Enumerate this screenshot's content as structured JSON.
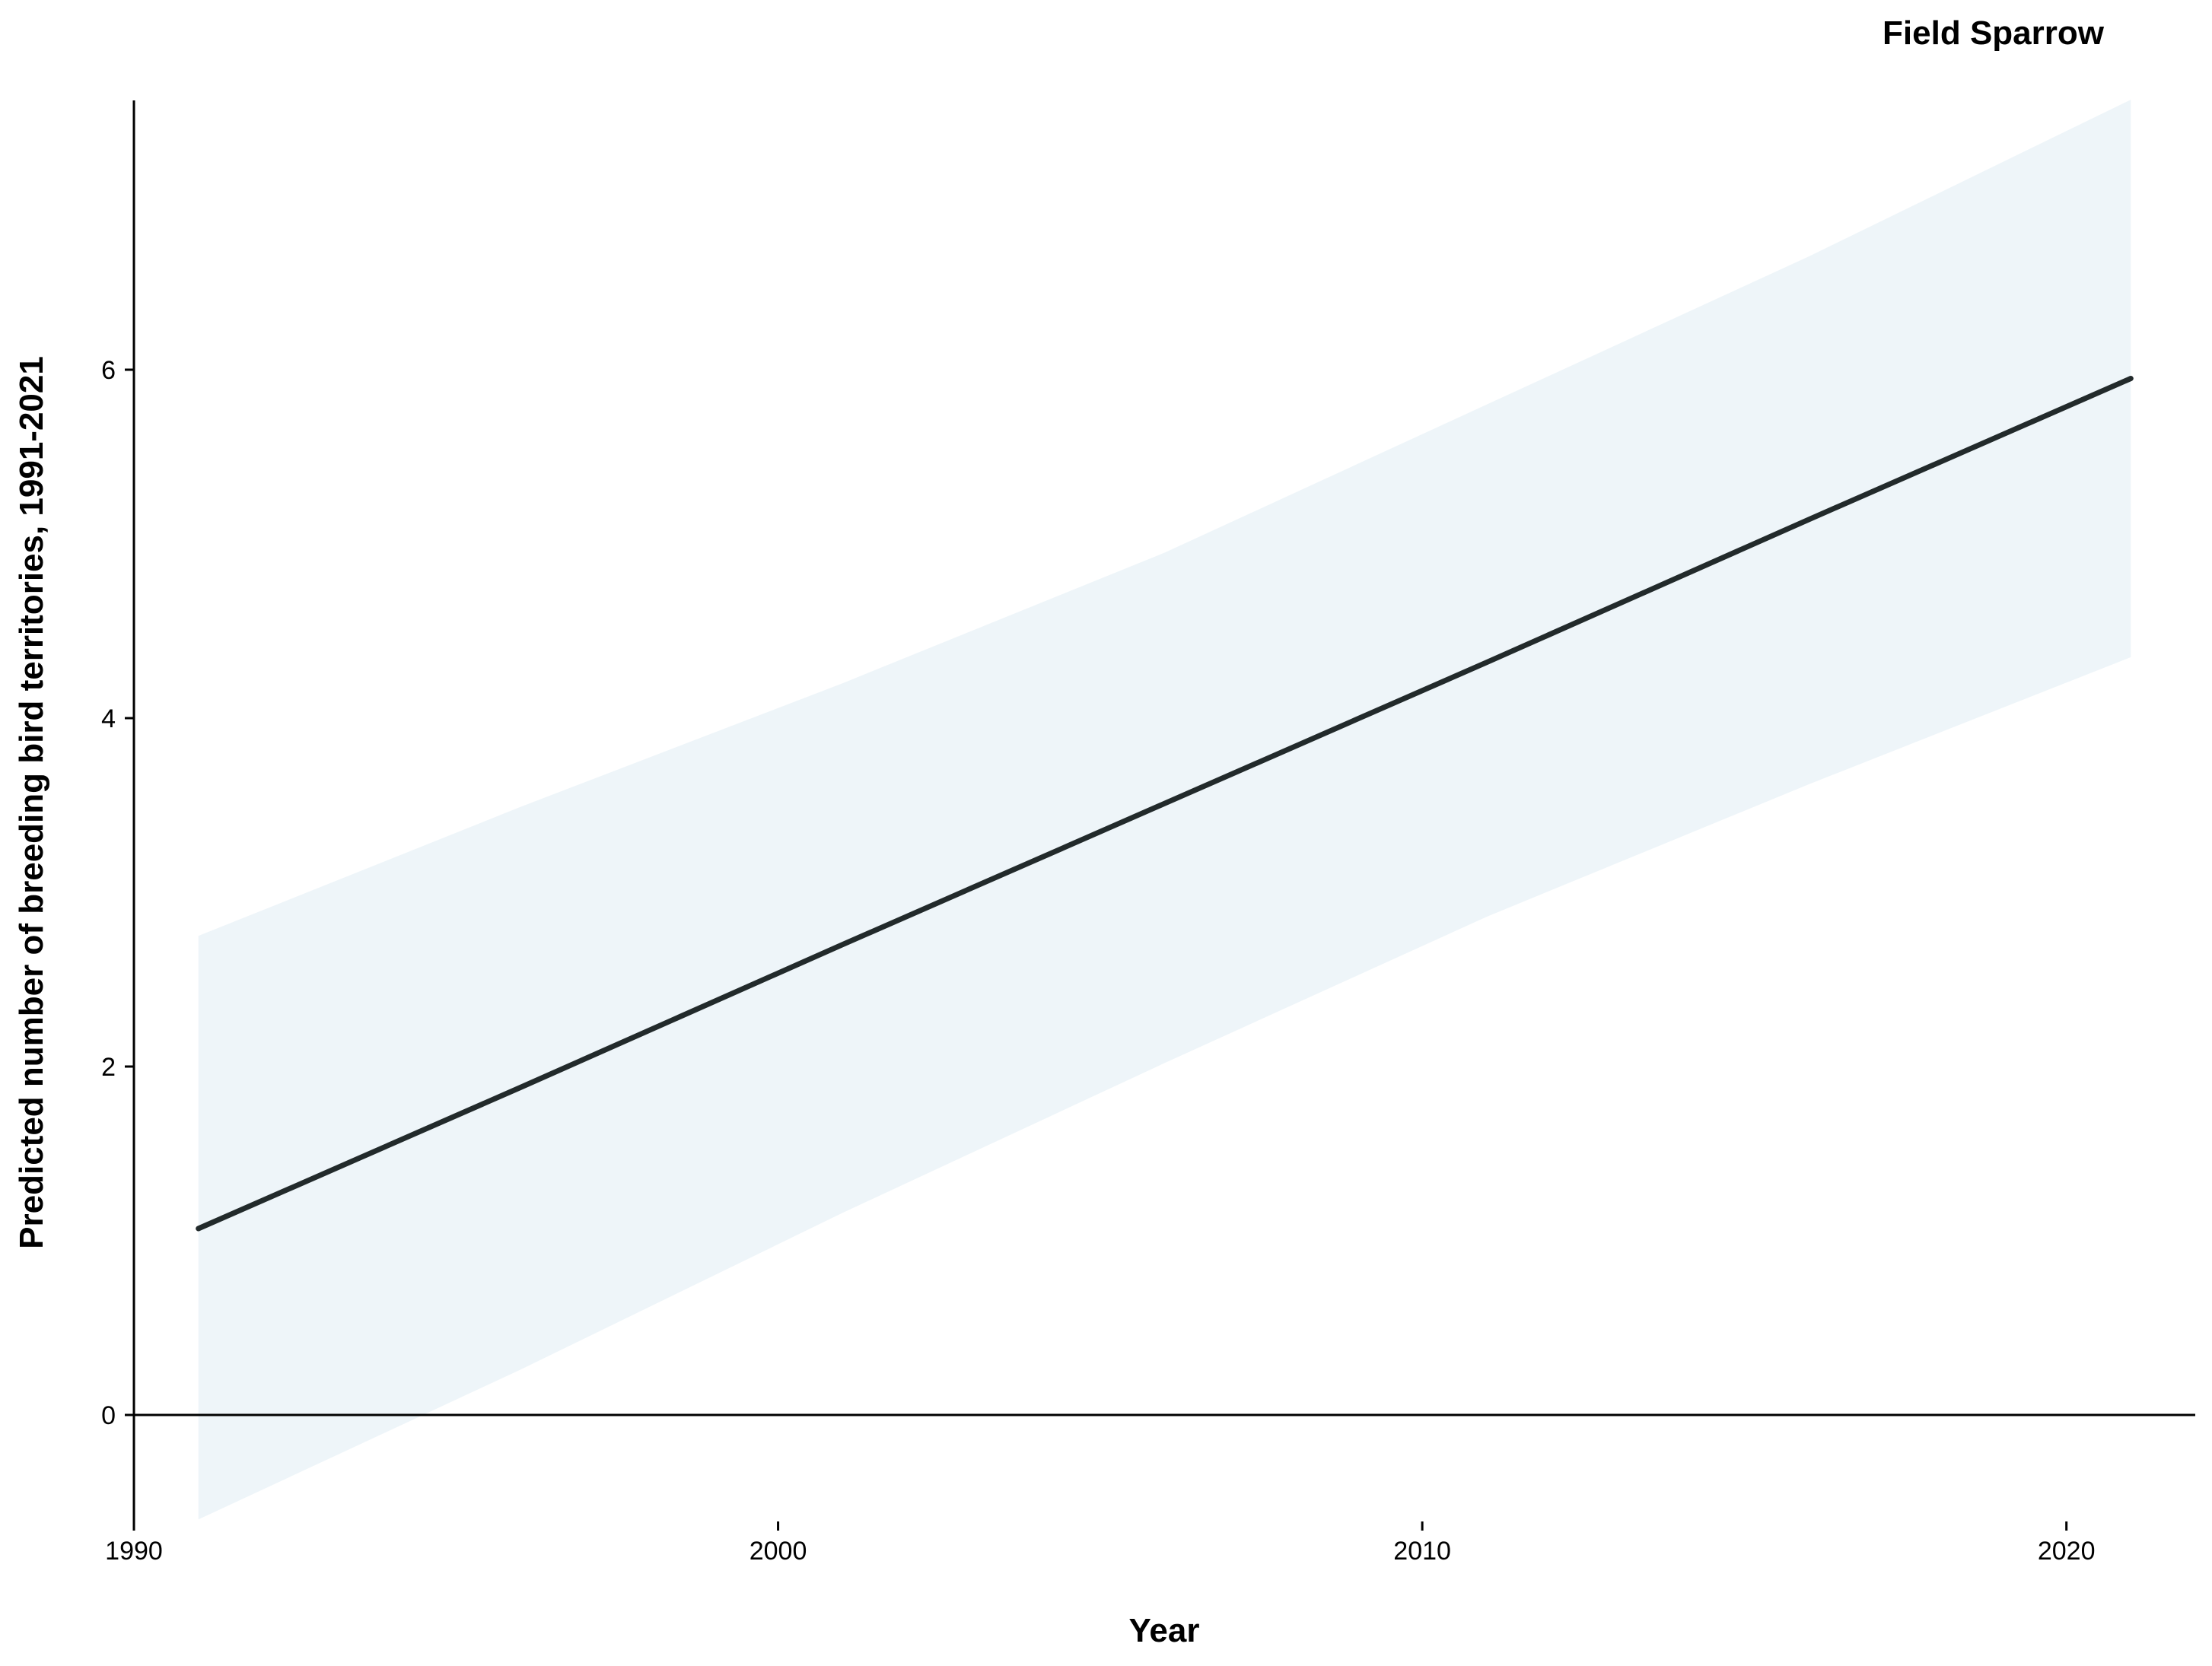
{
  "chart_data": {
    "type": "line",
    "title": "Field Sparrow",
    "xlabel": "Year",
    "ylabel": "Predicted number of breeding bird territories, 1991-2021",
    "xlim": [
      1990,
      2022
    ],
    "ylim": [
      -0.6,
      7.5
    ],
    "x_ticks": [
      1990,
      2000,
      2010,
      2020
    ],
    "y_ticks": [
      0,
      2,
      4,
      6
    ],
    "x_tick_labels": [
      "1990",
      "2000",
      "2010",
      "2020"
    ],
    "y_tick_labels": [
      "0",
      "2",
      "4",
      "6"
    ],
    "reference_line_y": 0,
    "grid": false,
    "legend": "none",
    "colors": {
      "line": "#222a2b",
      "ribbon": "#eef5f9",
      "axis": "#000000"
    },
    "series": [
      {
        "x": [
          1991,
          1996,
          2001,
          2006,
          2011,
          2016,
          2021
        ],
        "values": [
          1.07,
          1.88,
          2.7,
          3.51,
          4.32,
          5.14,
          5.95
        ],
        "lower": [
          -0.6,
          0.26,
          1.16,
          2.02,
          2.86,
          3.62,
          4.35
        ],
        "upper": [
          2.75,
          3.49,
          4.2,
          4.95,
          5.8,
          6.65,
          7.55
        ]
      }
    ]
  }
}
